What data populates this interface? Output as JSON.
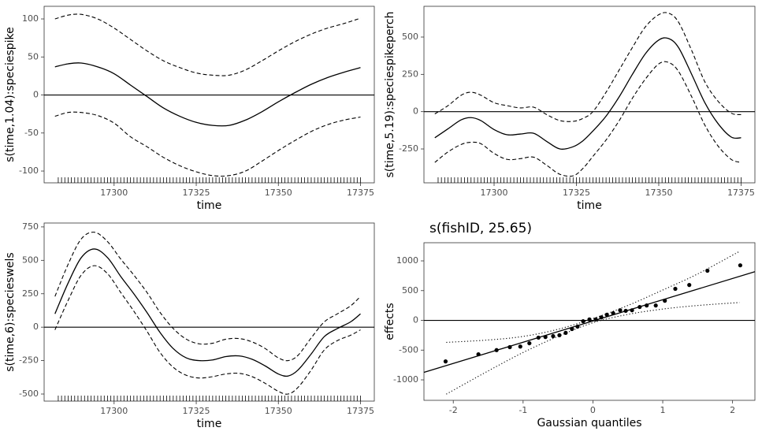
{
  "chart_data": [
    {
      "type": "smooth",
      "xlabel": "time",
      "ylabel": "s(time,1.04):speciespike",
      "band_style": "dashed",
      "color": "#000000",
      "xlim": [
        17278.7,
        17379.2
      ],
      "ylim": [
        -115.5,
        116.6
      ],
      "xticks": [
        17300,
        17325,
        17350,
        17375
      ],
      "yticks": [
        -100,
        -50,
        0,
        50,
        100
      ],
      "hline": 0,
      "x": [
        17282,
        17286,
        17290,
        17295,
        17300,
        17305,
        17310,
        17315,
        17320,
        17325,
        17330,
        17335,
        17340,
        17345,
        17350,
        17355,
        17360,
        17365,
        17370,
        17375
      ],
      "fit": [
        37,
        41,
        42,
        37,
        28,
        13,
        -2,
        -17,
        -28,
        -36,
        -40,
        -40,
        -33,
        -22,
        -9,
        3,
        14,
        23,
        30,
        36
      ],
      "upper": [
        100,
        105,
        106,
        100,
        88,
        73,
        58,
        45,
        36,
        29,
        26,
        26,
        33,
        45,
        58,
        70,
        80,
        88,
        94,
        101
      ],
      "lower": [
        -28,
        -23,
        -23,
        -27,
        -37,
        -55,
        -68,
        -82,
        -93,
        -101,
        -106,
        -106,
        -100,
        -87,
        -73,
        -60,
        -48,
        -39,
        -33,
        -29
      ],
      "rug": [
        17283,
        17284,
        17285,
        17286,
        17287,
        17288,
        17289,
        17290,
        17291,
        17292,
        17293,
        17294,
        17295,
        17296,
        17297,
        17298,
        17299,
        17300,
        17301,
        17302,
        17303,
        17304,
        17305,
        17306,
        17307,
        17308,
        17309,
        17310,
        17311,
        17312,
        17313,
        17314,
        17315,
        17316,
        17317,
        17318,
        17319,
        17320,
        17321,
        17322,
        17323,
        17324,
        17325,
        17326,
        17327,
        17328,
        17329,
        17330,
        17331,
        17332,
        17333,
        17334,
        17335,
        17336,
        17337,
        17338,
        17339,
        17340,
        17341,
        17342,
        17343,
        17344,
        17345,
        17346,
        17347,
        17348,
        17349,
        17350,
        17351,
        17352,
        17353,
        17354,
        17355,
        17356,
        17357,
        17358,
        17359,
        17360,
        17361,
        17362,
        17363,
        17364,
        17365,
        17366,
        17367,
        17368,
        17369,
        17370,
        17371,
        17372,
        17373,
        17374,
        17375
      ]
    },
    {
      "type": "smooth",
      "xlabel": "time",
      "ylabel": "s(time,5.19):speciespikeperch",
      "band_style": "dashed",
      "color": "#000000",
      "xlim": [
        17278.7,
        17379.2
      ],
      "ylim": [
        -477,
        706
      ],
      "xticks": [
        17300,
        17325,
        17350,
        17375
      ],
      "yticks": [
        -250,
        0,
        250,
        500
      ],
      "hline": 0,
      "x": [
        17282,
        17286,
        17290,
        17293,
        17296,
        17300,
        17304,
        17308,
        17312,
        17316,
        17320,
        17324,
        17327,
        17330,
        17334,
        17338,
        17342,
        17346,
        17350,
        17353,
        17356,
        17360,
        17364,
        17368,
        17372,
        17375
      ],
      "fit": [
        -175,
        -115,
        -55,
        -40,
        -60,
        -120,
        -155,
        -150,
        -145,
        -200,
        -250,
        -235,
        -195,
        -130,
        -30,
        100,
        250,
        390,
        480,
        490,
        430,
        250,
        60,
        -80,
        -170,
        -175
      ],
      "upper": [
        -15,
        40,
        110,
        130,
        110,
        60,
        40,
        25,
        30,
        -20,
        -60,
        -65,
        -45,
        0,
        130,
        280,
        430,
        570,
        650,
        660,
        600,
        410,
        200,
        70,
        -10,
        -20
      ],
      "lower": [
        -340,
        -270,
        -220,
        -205,
        -215,
        -280,
        -320,
        -315,
        -305,
        -360,
        -420,
        -430,
        -380,
        -300,
        -190,
        -60,
        90,
        220,
        320,
        330,
        270,
        100,
        -90,
        -230,
        -320,
        -340
      ],
      "rug": [
        17283,
        17284,
        17285,
        17286,
        17287,
        17288,
        17289,
        17290,
        17291,
        17292,
        17293,
        17294,
        17295,
        17296,
        17297,
        17298,
        17299,
        17300,
        17301,
        17302,
        17303,
        17304,
        17305,
        17306,
        17307,
        17308,
        17309,
        17310,
        17311,
        17312,
        17313,
        17314,
        17315,
        17316,
        17317,
        17318,
        17319,
        17320,
        17321,
        17322,
        17323,
        17324,
        17325,
        17326,
        17327,
        17328,
        17329,
        17330,
        17331,
        17332,
        17333,
        17334,
        17335,
        17336,
        17337,
        17338,
        17339,
        17340,
        17341,
        17342,
        17343,
        17344,
        17345,
        17346,
        17347,
        17348,
        17349,
        17350,
        17351,
        17352,
        17353,
        17354,
        17355,
        17356,
        17357,
        17358,
        17359,
        17360,
        17361,
        17362,
        17363,
        17364,
        17365,
        17366,
        17367,
        17368,
        17369,
        17370,
        17371,
        17372,
        17373,
        17374,
        17375
      ]
    },
    {
      "type": "smooth",
      "xlabel": "time",
      "ylabel": "s(time,6):specieswels",
      "band_style": "dashed",
      "color": "#000000",
      "xlim": [
        17278.7,
        17379.2
      ],
      "ylim": [
        -553,
        779
      ],
      "xticks": [
        17300,
        17325,
        17350,
        17375
      ],
      "yticks": [
        -500,
        -250,
        0,
        250,
        500,
        750
      ],
      "hline": 0,
      "x": [
        17282,
        17286,
        17290,
        17294,
        17298,
        17302,
        17306,
        17310,
        17314,
        17318,
        17322,
        17326,
        17330,
        17334,
        17338,
        17342,
        17346,
        17350,
        17353,
        17356,
        17360,
        17364,
        17368,
        17372,
        17375
      ],
      "fit": [
        100,
        330,
        520,
        585,
        520,
        380,
        250,
        110,
        -40,
        -160,
        -230,
        -250,
        -245,
        -220,
        -215,
        -240,
        -290,
        -350,
        -365,
        -320,
        -200,
        -70,
        -10,
        40,
        100
      ],
      "upper": [
        230,
        470,
        660,
        710,
        640,
        510,
        390,
        260,
        110,
        -10,
        -90,
        -125,
        -120,
        -90,
        -85,
        -110,
        -160,
        -230,
        -250,
        -210,
        -80,
        40,
        100,
        160,
        230
      ],
      "lower": [
        -20,
        200,
        390,
        460,
        400,
        260,
        120,
        -30,
        -190,
        -300,
        -360,
        -380,
        -370,
        -350,
        -345,
        -370,
        -420,
        -480,
        -500,
        -450,
        -320,
        -170,
        -100,
        -60,
        -20
      ],
      "rug": [
        17283,
        17284,
        17285,
        17286,
        17287,
        17288,
        17289,
        17290,
        17291,
        17292,
        17293,
        17294,
        17295,
        17296,
        17297,
        17298,
        17299,
        17300,
        17301,
        17302,
        17303,
        17304,
        17305,
        17306,
        17307,
        17308,
        17309,
        17310,
        17311,
        17312,
        17313,
        17314,
        17315,
        17316,
        17317,
        17318,
        17319,
        17320,
        17321,
        17322,
        17323,
        17324,
        17325,
        17326,
        17327,
        17328,
        17329,
        17330,
        17331,
        17332,
        17333,
        17334,
        17335,
        17336,
        17337,
        17338,
        17339,
        17340,
        17341,
        17342,
        17343,
        17344,
        17345,
        17346,
        17347,
        17348,
        17349,
        17350,
        17351,
        17352,
        17353,
        17354,
        17355,
        17356,
        17357,
        17358,
        17359,
        17360,
        17361,
        17362,
        17363,
        17364,
        17365,
        17366,
        17367,
        17368,
        17369,
        17370,
        17371,
        17372,
        17373,
        17374,
        17375
      ]
    },
    {
      "type": "qq",
      "title": "s(fishID, 25.65)",
      "xlabel": "Gaussian quantiles",
      "ylabel": "effects",
      "band_style": "dotted",
      "color": "#000000",
      "xlim": [
        -2.42,
        2.32
      ],
      "ylim": [
        -1344,
        1305
      ],
      "xticks": [
        -2,
        -1,
        0,
        1,
        2
      ],
      "yticks": [
        -1000,
        -500,
        0,
        500,
        1000
      ],
      "hline": 0,
      "points": {
        "x": [
          -2.11,
          -1.64,
          -1.38,
          -1.19,
          -1.04,
          -0.91,
          -0.78,
          -0.68,
          -0.57,
          -0.48,
          -0.39,
          -0.3,
          -0.22,
          -0.14,
          -0.05,
          0.04,
          0.12,
          0.2,
          0.29,
          0.39,
          0.47,
          0.56,
          0.67,
          0.77,
          0.9,
          1.03,
          1.18,
          1.38,
          1.64,
          2.11
        ],
        "y": [
          -690,
          -570,
          -500,
          -450,
          -440,
          -385,
          -290,
          -280,
          -265,
          -250,
          -210,
          -145,
          -105,
          -15,
          15,
          15,
          50,
          95,
          120,
          170,
          160,
          170,
          225,
          250,
          250,
          330,
          530,
          595,
          835,
          925
        ]
      },
      "line": {
        "x": [
          -2.42,
          2.32
        ],
        "y": [
          -874,
          818
        ]
      },
      "band": {
        "x": [
          -2.1,
          -1.5,
          -1,
          -0.5,
          0,
          0.5,
          1,
          1.5,
          2.1
        ],
        "upper": [
          -370,
          -330,
          -270,
          -150,
          30,
          250,
          510,
          780,
          1160
        ],
        "lower": [
          -1240,
          -850,
          -540,
          -270,
          -40,
          100,
          190,
          250,
          300
        ]
      }
    }
  ]
}
